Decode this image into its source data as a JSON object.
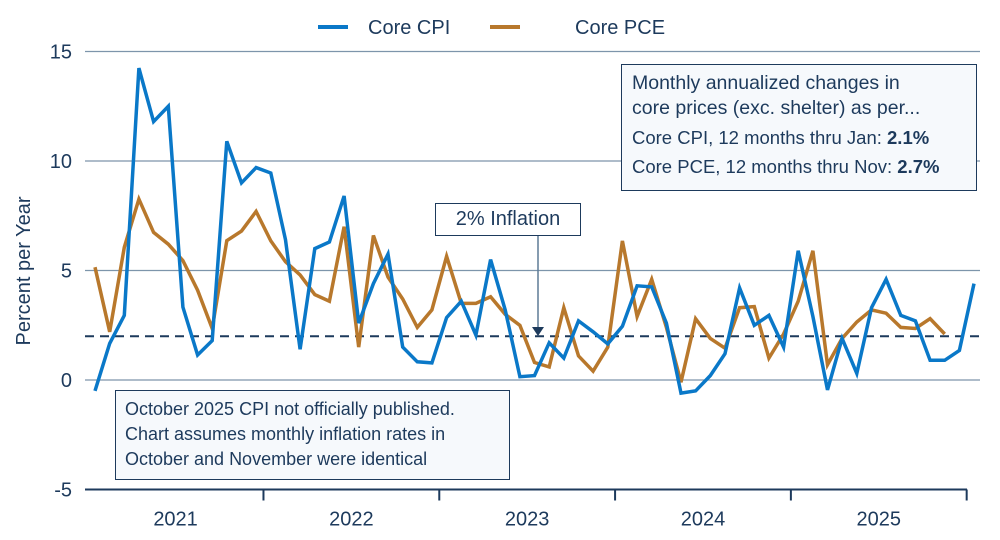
{
  "chart_data": {
    "type": "line",
    "ylabel": "Percent per Year",
    "ylim": [
      -5,
      15
    ],
    "yticks": [
      -5,
      0,
      5,
      10,
      15
    ],
    "xtick_labels": [
      "2021",
      "2022",
      "2023",
      "2024",
      "2025"
    ],
    "x_start": "2021-01",
    "x_frequency": "monthly",
    "grid": "horizontal",
    "legend_position": "top-center",
    "reference_line": {
      "value": 2,
      "label": "2% Inflation",
      "style": "dashed",
      "color": "#1d3a5c"
    },
    "series": [
      {
        "name": "Core CPI",
        "color": "#0a78c8",
        "start": "2021-01",
        "end": "2026-01",
        "values": [
          -0.5,
          1.67,
          2.95,
          14.24,
          11.8,
          12.5,
          3.33,
          1.14,
          1.8,
          10.9,
          9.0,
          9.7,
          9.45,
          6.4,
          1.4,
          6.0,
          6.3,
          8.4,
          2.6,
          4.4,
          5.75,
          1.5,
          0.83,
          0.78,
          2.85,
          3.6,
          2.05,
          5.5,
          3.2,
          0.15,
          0.2,
          1.7,
          1.0,
          2.7,
          2.2,
          1.65,
          2.45,
          4.3,
          4.25,
          2.6,
          -0.6,
          -0.5,
          0.2,
          1.2,
          4.2,
          2.5,
          2.95,
          1.5,
          5.9,
          2.9,
          -0.45,
          1.9,
          0.3,
          3.3,
          4.6,
          2.95,
          2.7,
          0.9,
          0.9,
          1.35,
          4.4
        ]
      },
      {
        "name": "Core PCE",
        "color": "#b8782c",
        "start": "2021-01",
        "end": "2025-11",
        "values": [
          5.15,
          2.2,
          6.06,
          8.26,
          6.74,
          6.2,
          5.45,
          4.1,
          2.35,
          6.36,
          6.8,
          7.7,
          6.35,
          5.4,
          4.8,
          3.9,
          3.6,
          7.0,
          1.5,
          6.6,
          4.7,
          3.7,
          2.4,
          3.2,
          5.65,
          3.5,
          3.5,
          3.8,
          3.0,
          2.5,
          0.8,
          0.6,
          3.3,
          1.1,
          0.4,
          1.5,
          6.35,
          2.9,
          4.6,
          2.4,
          -0.1,
          2.8,
          1.9,
          1.45,
          3.3,
          3.35,
          1.0,
          2.1,
          3.6,
          5.9,
          0.7,
          1.9,
          2.65,
          3.2,
          3.05,
          2.4,
          2.35,
          2.8,
          2.1
        ]
      }
    ],
    "annotations": {
      "summary_line1": "Monthly annualized changes in",
      "summary_line2": "core prices (exc. shelter) as per...",
      "cpi_label": "Core CPI, 12 months thru Jan: ",
      "cpi_value": "2.1%",
      "pce_label": "Core PCE, 12 months thru Nov: ",
      "pce_value": "2.7%",
      "note_line1": "October 2025 CPI not officially published.",
      "note_line2": "Chart assumes monthly inflation rates in",
      "note_line3": "October and November were identical"
    }
  }
}
